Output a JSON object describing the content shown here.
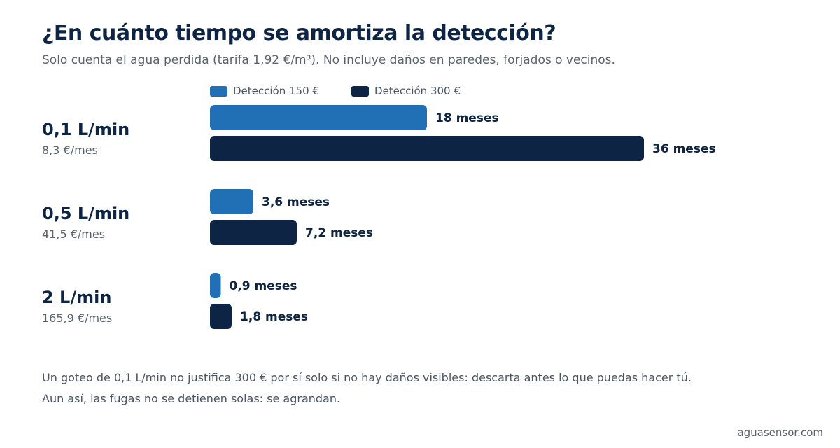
{
  "title": "¿En cuánto tiempo se amortiza la detección?",
  "subtitle": "Solo cuenta el agua perdida (tarifa 1,92 €/m³). No incluye daños en paredes, forjados o vecinos.",
  "colors": {
    "series_150": "#2170b6",
    "series_300": "#0d2444",
    "text": "#0d2444",
    "muted": "#5a6370"
  },
  "chart_data": {
    "type": "bar",
    "orientation": "horizontal",
    "categories": [
      "0,1 L/min",
      "0,5 L/min",
      "2 L/min"
    ],
    "category_subtitles": [
      "8,3 €/mes",
      "41,5 €/mes",
      "165,9 €/mes"
    ],
    "series": [
      {
        "name": "Detección 150 €",
        "values": [
          18,
          3.6,
          0.9
        ],
        "labels": [
          "18 meses",
          "3,6 meses",
          "0,9 meses"
        ]
      },
      {
        "name": "Detección 300 €",
        "values": [
          36,
          7.2,
          1.8
        ],
        "labels": [
          "36 meses",
          "7,2 meses",
          "1,8 meses"
        ]
      }
    ],
    "xlim": [
      0,
      36
    ],
    "grid": false,
    "legend_position": "top"
  },
  "notes": [
    "Un goteo de 0,1 L/min no justifica 300 € por sí solo si no hay daños visibles: descarta antes lo que puedas hacer tú.",
    "Aun así, las fugas no se detienen solas: se agrandan."
  ],
  "footer": "aguasensor.com"
}
